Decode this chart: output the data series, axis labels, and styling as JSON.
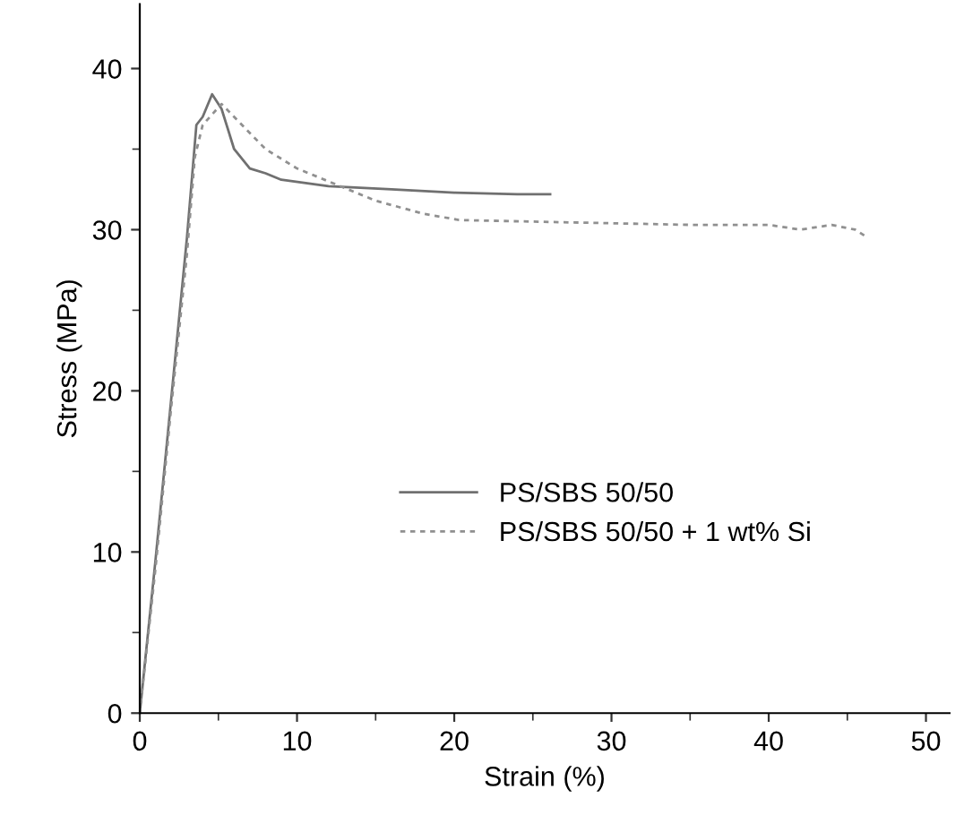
{
  "chart_data": {
    "type": "line",
    "xlabel": "Strain (%)",
    "ylabel": "Stress (MPa)",
    "xlim": [
      0,
      51.5
    ],
    "ylim": [
      0,
      44
    ],
    "xticks": [
      0,
      10,
      20,
      30,
      40,
      50
    ],
    "yticks": [
      0,
      10,
      20,
      30,
      40
    ],
    "legend": "bottom right",
    "grid": false,
    "series": [
      {
        "name": "PS/SBS 50/50",
        "color": "#707070",
        "line_style": "solid",
        "x": [
          0,
          1,
          2,
          3,
          3.6,
          4.0,
          4.6,
          5.2,
          6,
          7,
          8,
          9,
          12,
          16,
          20,
          24,
          26.1
        ],
        "values": [
          0,
          9.5,
          19.5,
          29.5,
          36.5,
          37.0,
          38.4,
          37.5,
          35,
          33.8,
          33.5,
          33.1,
          32.7,
          32.5,
          32.3,
          32.2,
          32.2
        ]
      },
      {
        "name": "PS/SBS 50/50 + 1 wt% Si",
        "color": "#909090",
        "line_style": "dashed",
        "x": [
          0,
          1,
          2,
          3,
          3.5,
          4.0,
          5.2,
          6.5,
          8,
          10,
          12,
          15,
          18,
          20.3,
          25,
          30,
          35,
          40,
          42,
          44,
          45.5,
          46.3
        ],
        "values": [
          0,
          9,
          19,
          28.5,
          34.5,
          36.5,
          37.8,
          36.5,
          35,
          33.8,
          33,
          31.8,
          31,
          30.6,
          30.5,
          30.4,
          30.3,
          30.3,
          30.0,
          30.3,
          30,
          29.5
        ]
      }
    ]
  }
}
